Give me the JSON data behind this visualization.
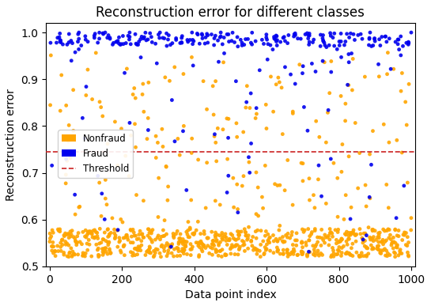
{
  "title": "Reconstruction error for different classes",
  "xlabel": "Data point index",
  "ylabel": "Reconstruction error",
  "threshold": 0.745,
  "xlim": [
    -10,
    1010
  ],
  "ylim": [
    0.5,
    1.02
  ],
  "nonfraud_color": "#FFA500",
  "fraud_color": "#0000EE",
  "threshold_color": "#CC2222",
  "n_nonfraud": 900,
  "n_fraud": 300,
  "seed": 7,
  "marker_size": 12,
  "alpha": 0.9,
  "yticks": [
    0.5,
    0.6,
    0.7,
    0.8,
    0.9,
    1.0
  ],
  "xticks": [
    0,
    200,
    400,
    600,
    800,
    1000
  ],
  "figsize": [
    5.45,
    3.87
  ],
  "dpi": 100
}
